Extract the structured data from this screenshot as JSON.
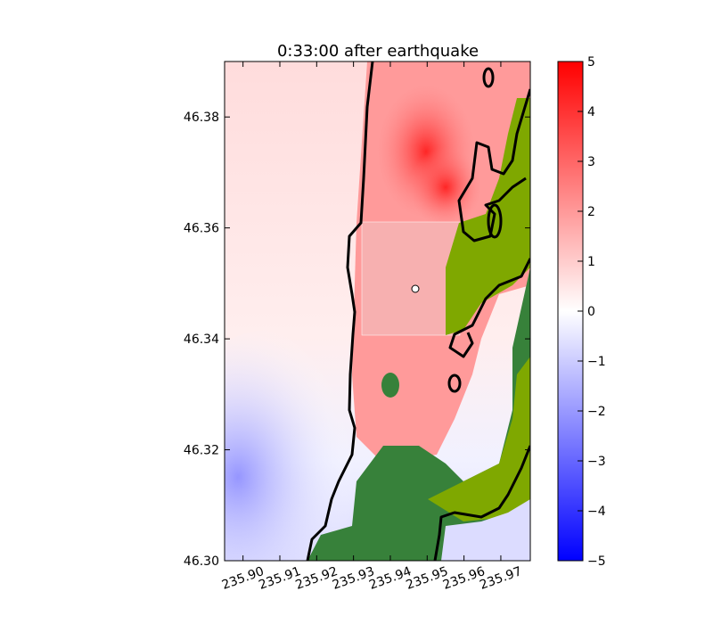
{
  "chart_data": {
    "type": "heatmap",
    "title": "0:33:00 after earthquake",
    "xlabel": "",
    "ylabel": "",
    "xlim": [
      235.895,
      235.978
    ],
    "ylim": [
      46.3,
      46.39
    ],
    "x_ticks": [
      235.9,
      235.91,
      235.92,
      235.93,
      235.94,
      235.95,
      235.96,
      235.97
    ],
    "x_tick_labels": [
      "235.90",
      "235.91",
      "235.92",
      "235.93",
      "235.94",
      "235.95",
      "235.96",
      "235.97"
    ],
    "y_ticks": [
      46.3,
      46.32,
      46.34,
      46.36,
      46.38
    ],
    "y_tick_labels": [
      "46.30",
      "46.32",
      "46.34",
      "46.36",
      "46.38"
    ],
    "colorbar": {
      "min": -5,
      "max": 5,
      "ticks": [
        -5,
        -4,
        -3,
        -2,
        -1,
        0,
        1,
        2,
        3,
        4,
        5
      ],
      "tick_labels": [
        "−5",
        "−4",
        "−3",
        "−2",
        "−1",
        "0",
        "1",
        "2",
        "3",
        "4",
        "5"
      ],
      "colormap": [
        "#0000ff",
        "#ffffff",
        "#ff0000"
      ]
    },
    "land_colors": {
      "high": "#37813a",
      "low": "#7fa800"
    },
    "grid": false,
    "legend": "none"
  }
}
